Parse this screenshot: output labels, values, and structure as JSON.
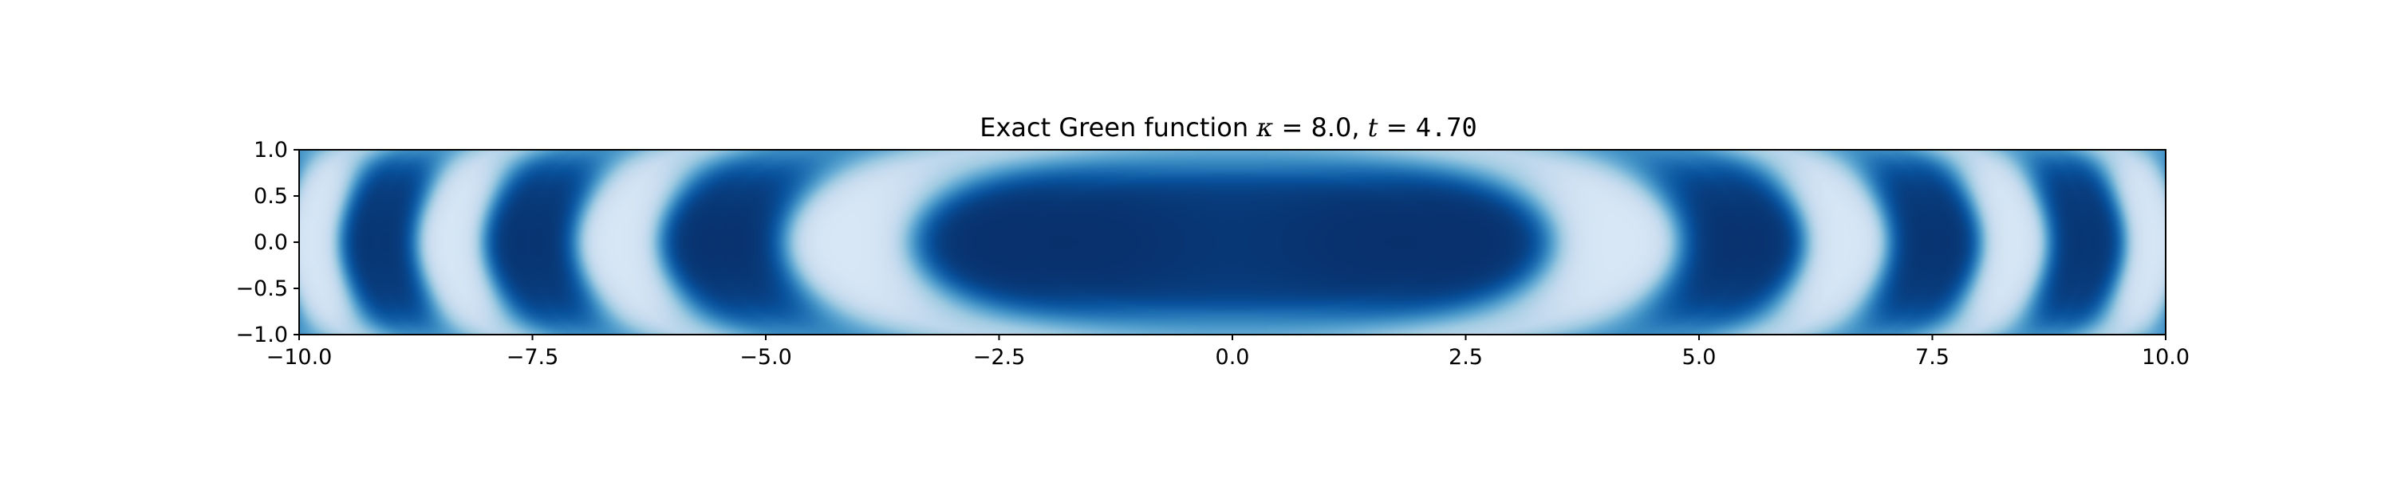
{
  "chart_data": {
    "type": "heatmap",
    "title": {
      "prefix": "Exact Green function ",
      "kappa_symbol": "κ",
      "kappa_eq": " = 8.0, ",
      "t_symbol": "t",
      "t_eq": " = ",
      "t_value": "4.70"
    },
    "xlabel": "",
    "ylabel": "",
    "xlim": [
      -10.0,
      10.0
    ],
    "ylim": [
      -1.0,
      1.0
    ],
    "xticks": [
      -10.0,
      -7.5,
      -5.0,
      -2.5,
      0.0,
      2.5,
      5.0,
      7.5,
      10.0
    ],
    "xtick_labels": [
      "−10.0",
      "−7.5",
      "−5.0",
      "−2.5",
      "0.0",
      "2.5",
      "5.0",
      "7.5",
      "10.0"
    ],
    "yticks": [
      1.0,
      0.5,
      0.0,
      -0.5,
      -1.0
    ],
    "ytick_labels": [
      "1.0",
      "0.5",
      "0.0",
      "−0.5",
      "−1.0"
    ],
    "colormap": "Blues",
    "color_low": "#f7fbff",
    "color_high": "#08306b",
    "grid": false,
    "legend": "none"
  }
}
